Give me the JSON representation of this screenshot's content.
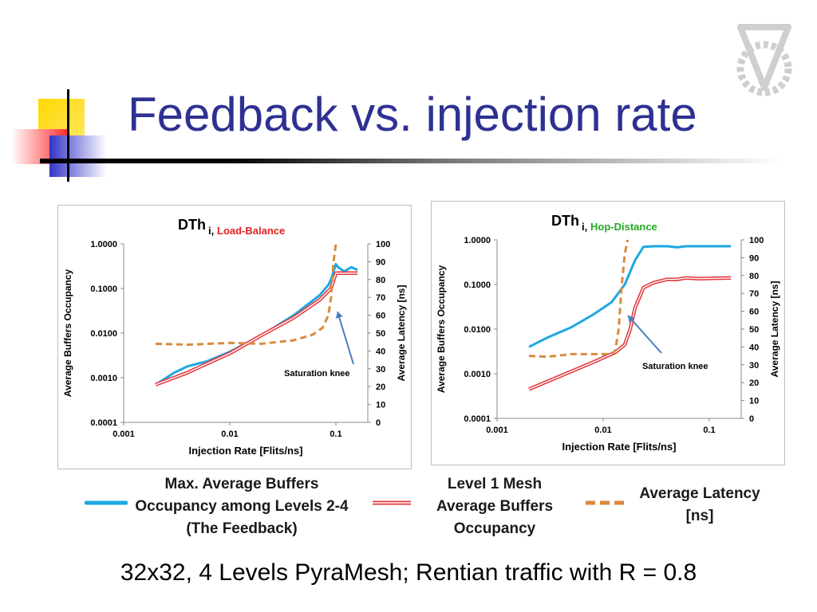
{
  "slide": {
    "title": "Feedback vs. injection rate",
    "caption": "32x32, 4 Levels PyraMesh; Rentian traffic with R = 0.8"
  },
  "legend": {
    "feedback_line1": "Max. Average Buffers",
    "feedback_line2": "Occupancy among Levels 2-4",
    "feedback_line3": "(The Feedback)",
    "mesh_line1": "Level 1 Mesh",
    "mesh_line2": "Average Buffers",
    "mesh_line3": "Occupancy",
    "latency_line1": "Average Latency",
    "latency_line2": "[ns]"
  },
  "colors": {
    "feedback": "#1ea8e0",
    "mesh": "#e0393e",
    "latency": "#d98a3d",
    "title": "#2e3191",
    "label_load": "#e02020",
    "label_hop": "#22aa22"
  },
  "chart_data": [
    {
      "type": "line",
      "title_main": "DTh",
      "title_sub": "i,Load-Balance",
      "xlabel": "Injection Rate [Flits/ns]",
      "ylabel_left": "Average Buffers Occupancy",
      "ylabel_right": "Average Latency [ns]",
      "x_scale": "log",
      "xlim": [
        0.001,
        0.2
      ],
      "x_ticks": [
        "0.001",
        "0.01",
        "0.1"
      ],
      "y_left_scale": "log",
      "y_left_lim": [
        0.0001,
        1
      ],
      "y_left_ticks": [
        "1.0000",
        "0.1000",
        "0.0100",
        "0.0010",
        "0.0001"
      ],
      "y_right_lim": [
        0,
        100
      ],
      "y_right_ticks": [
        "100",
        "90",
        "80",
        "70",
        "60",
        "50",
        "40",
        "30",
        "20",
        "10",
        "0"
      ],
      "annotation": "Saturation knee",
      "series": [
        {
          "axis": "left",
          "x": [
            0.002,
            0.003,
            0.004,
            0.006,
            0.01,
            0.02,
            0.04,
            0.07,
            0.085,
            0.09,
            0.1,
            0.105,
            0.12,
            0.14,
            0.16
          ],
          "values": [
            0.0007,
            0.0013,
            0.0018,
            0.0023,
            0.0038,
            0.009,
            0.025,
            0.07,
            0.12,
            0.16,
            0.35,
            0.3,
            0.24,
            0.3,
            0.26
          ]
        },
        {
          "axis": "left",
          "x": [
            0.002,
            0.004,
            0.007,
            0.01,
            0.02,
            0.04,
            0.07,
            0.09,
            0.1,
            0.12,
            0.16
          ],
          "values": [
            0.0007,
            0.0013,
            0.0024,
            0.0035,
            0.009,
            0.022,
            0.055,
            0.1,
            0.22,
            0.22,
            0.22
          ]
        },
        {
          "axis": "right",
          "x": [
            0.002,
            0.004,
            0.01,
            0.02,
            0.04,
            0.06,
            0.075,
            0.085,
            0.09,
            0.095,
            0.1,
            0.102
          ],
          "values": [
            44,
            43.5,
            44.5,
            44,
            46,
            49,
            53,
            60,
            70,
            90,
            100,
            100
          ]
        }
      ]
    },
    {
      "type": "line",
      "title_main": "DTh",
      "title_sub": "i,Hop-Distance",
      "xlabel": "Injection Rate [Flits/ns]",
      "ylabel_left": "Average Buffers Occupancy",
      "ylabel_right": "Average Latency [ns]",
      "x_scale": "log",
      "xlim": [
        0.001,
        0.2
      ],
      "x_ticks": [
        "0.001",
        "0.01",
        "0.1"
      ],
      "y_left_scale": "log",
      "y_left_lim": [
        0.0001,
        1
      ],
      "y_left_ticks": [
        "1.0000",
        "0.1000",
        "0.0100",
        "0.0010",
        "0.0001"
      ],
      "y_right_lim": [
        0,
        100
      ],
      "y_right_ticks": [
        "100",
        "90",
        "80",
        "70",
        "60",
        "50",
        "40",
        "30",
        "20",
        "10",
        "0"
      ],
      "annotation": "Saturation knee",
      "series": [
        {
          "axis": "left",
          "x": [
            0.002,
            0.003,
            0.005,
            0.008,
            0.012,
            0.016,
            0.02,
            0.024,
            0.03,
            0.04,
            0.05,
            0.06,
            0.08,
            0.1,
            0.16
          ],
          "values": [
            0.004,
            0.0065,
            0.011,
            0.021,
            0.04,
            0.1,
            0.35,
            0.7,
            0.72,
            0.72,
            0.68,
            0.72,
            0.72,
            0.72,
            0.72
          ]
        },
        {
          "axis": "left",
          "x": [
            0.002,
            0.004,
            0.008,
            0.013,
            0.016,
            0.018,
            0.02,
            0.024,
            0.03,
            0.04,
            0.05,
            0.06,
            0.08,
            0.16
          ],
          "values": [
            0.00045,
            0.0009,
            0.0018,
            0.003,
            0.0045,
            0.01,
            0.03,
            0.085,
            0.11,
            0.13,
            0.13,
            0.14,
            0.135,
            0.14
          ]
        },
        {
          "axis": "right",
          "x": [
            0.002,
            0.003,
            0.005,
            0.008,
            0.012,
            0.013,
            0.014,
            0.015,
            0.016,
            0.017
          ],
          "values": [
            35,
            34.5,
            36,
            36,
            36,
            38,
            50,
            75,
            92,
            100
          ]
        }
      ]
    }
  ]
}
